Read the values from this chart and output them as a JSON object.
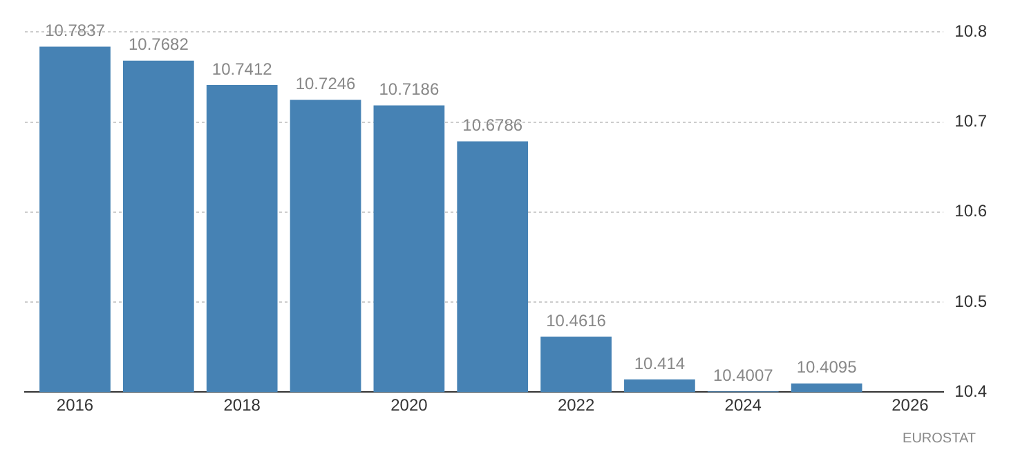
{
  "chart_data": {
    "type": "bar",
    "x": [
      2016,
      2017,
      2018,
      2019,
      2020,
      2021,
      2022,
      2023,
      2024,
      2025
    ],
    "values": [
      10.7837,
      10.7682,
      10.7412,
      10.7246,
      10.7186,
      10.6786,
      10.4616,
      10.414,
      10.4007,
      10.4095
    ],
    "color": "#4682b4",
    "xlim": [
      2015.4,
      2026.4
    ],
    "xticks": [
      2016,
      2018,
      2020,
      2022,
      2024,
      2026
    ],
    "ylim": [
      10.4,
      10.8
    ],
    "yticks": [
      10.4,
      10.5,
      10.6,
      10.7,
      10.8
    ],
    "grid": "y",
    "data_labels": true,
    "legend": false,
    "annotations": [
      "EUROSTAT"
    ]
  }
}
